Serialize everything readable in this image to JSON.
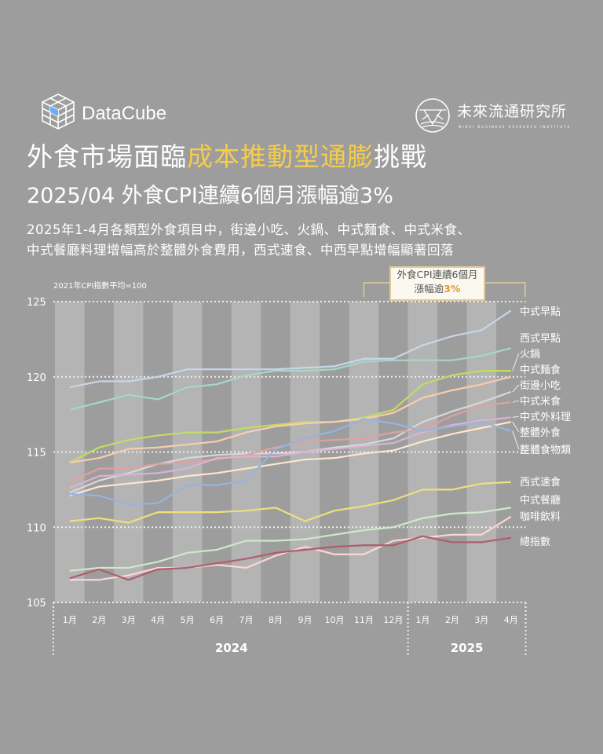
{
  "brand": {
    "datacube": "DataCube",
    "institute": "未來流通研究所",
    "institute_sub": "MIRAI BUSINESS RESEARCH INSTITUTE"
  },
  "header": {
    "title_pre": "外食市場面臨",
    "title_highlight": "成本推動型通膨",
    "title_post": "挑戰",
    "subtitle": "2025/04 外食CPI連續6個月漲幅逾3%",
    "desc_line1": "2025年1-4月各類型外食項目中，街邊小吃、火鍋、中式麵食、中式米食、",
    "desc_line2": "中式餐廳料理增幅高於整體外食費用，西式速食、中西早點增幅顯著回落"
  },
  "colors": {
    "background": "#9d9d9d",
    "stripe": "#b4b4b4",
    "highlight": "#f7cc4a",
    "callout_pct": "#e39a2d"
  },
  "chart_data": {
    "type": "line",
    "title": "",
    "ylabel": "2021年CPI指數平均=100",
    "ylim": [
      105,
      125
    ],
    "yticks": [
      105,
      110,
      115,
      120,
      125
    ],
    "grid": true,
    "categories": [
      "1月",
      "2月",
      "3月",
      "4月",
      "5月",
      "6月",
      "7月",
      "8月",
      "9月",
      "10月",
      "11月",
      "12月",
      "1月",
      "2月",
      "3月",
      "4月"
    ],
    "year_groups": [
      {
        "label": "2024",
        "months": 12
      },
      {
        "label": "2025",
        "months": 4
      }
    ],
    "annotation": {
      "line1": "外食CPI連續6個月",
      "line2_pre": "漲幅逾",
      "line2_pct": "3%",
      "span": [
        "11月",
        "4月"
      ]
    },
    "series": [
      {
        "name": "中式早點",
        "color": "#c9d5e8",
        "values": [
          119.3,
          119.7,
          119.7,
          120.0,
          120.5,
          120.5,
          120.5,
          120.5,
          120.6,
          120.7,
          121.2,
          121.2,
          122.1,
          122.7,
          123.1,
          124.4
        ]
      },
      {
        "name": "西式早點",
        "color": "#a6d8c6",
        "values": [
          117.8,
          118.3,
          118.8,
          118.5,
          119.3,
          119.5,
          120.1,
          120.4,
          120.4,
          120.5,
          121.0,
          121.1,
          121.1,
          121.1,
          121.4,
          121.9
        ]
      },
      {
        "name": "火鍋",
        "color": "#c3dc62",
        "values": [
          114.3,
          115.3,
          115.8,
          116.1,
          116.3,
          116.3,
          116.6,
          116.8,
          117.0,
          117.0,
          117.3,
          117.8,
          119.5,
          120.1,
          120.4,
          120.4
        ]
      },
      {
        "name": "中式麵食",
        "color": "#f8cdae",
        "values": [
          114.3,
          114.6,
          115.2,
          115.3,
          115.5,
          115.7,
          116.3,
          116.7,
          116.9,
          117.0,
          117.2,
          117.6,
          118.6,
          119.1,
          119.5,
          120.0
        ]
      },
      {
        "name": "街邊小吃",
        "color": "#d8d8d8",
        "values": [
          112.3,
          113.1,
          113.6,
          114.2,
          114.6,
          114.8,
          114.9,
          114.9,
          115.0,
          115.3,
          115.5,
          115.9,
          117.0,
          117.7,
          118.3,
          119.0
        ]
      },
      {
        "name": "中式米食",
        "color": "#e0a0a2",
        "values": [
          113.0,
          113.9,
          113.9,
          114.2,
          114.3,
          114.5,
          114.8,
          115.3,
          115.7,
          115.8,
          115.9,
          116.3,
          116.5,
          117.4,
          118.1,
          118.3
        ]
      },
      {
        "name": "中式外料理",
        "color": "#dcb2d4",
        "values": [
          112.6,
          113.4,
          113.5,
          113.6,
          113.9,
          114.6,
          114.7,
          114.7,
          115.0,
          115.2,
          115.4,
          115.6,
          116.3,
          116.8,
          117.1,
          117.3
        ]
      },
      {
        "name": "整體外食",
        "color": "#fde7cf",
        "values": [
          112.1,
          112.7,
          112.9,
          113.1,
          113.4,
          113.6,
          113.9,
          114.2,
          114.5,
          114.6,
          114.9,
          115.1,
          115.7,
          116.2,
          116.6,
          117.0
        ]
      },
      {
        "name": "整體食物類",
        "color": "#97b3e0",
        "values": [
          112.2,
          112.1,
          111.5,
          111.6,
          112.8,
          112.8,
          113.1,
          115.2,
          115.9,
          116.4,
          117.2,
          116.9,
          116.4,
          116.7,
          117.0,
          116.4
        ]
      },
      {
        "name": "西式速食",
        "color": "#efdf7c",
        "values": [
          110.4,
          110.6,
          110.3,
          111.0,
          111.0,
          111.0,
          111.1,
          111.3,
          110.4,
          111.1,
          111.4,
          111.8,
          112.5,
          112.5,
          112.9,
          113.0
        ]
      },
      {
        "name": "中式餐廳",
        "color": "#cfe9cb",
        "values": [
          107.1,
          107.3,
          107.3,
          107.7,
          108.3,
          108.5,
          109.1,
          109.1,
          109.2,
          109.5,
          109.8,
          110.0,
          110.6,
          110.9,
          111.0,
          111.3
        ]
      },
      {
        "name": "咖啡飲料",
        "color": "#fcd5d5",
        "values": [
          106.5,
          106.5,
          106.8,
          107.3,
          107.3,
          107.5,
          107.3,
          108.1,
          108.7,
          108.2,
          108.2,
          109.1,
          109.3,
          109.5,
          109.5,
          110.7
        ]
      },
      {
        "name": "總指數",
        "color": "#ae5e6c",
        "values": [
          106.6,
          107.2,
          106.5,
          107.2,
          107.3,
          107.6,
          107.9,
          108.3,
          108.5,
          108.7,
          108.8,
          108.8,
          109.4,
          109.0,
          109.0,
          109.3
        ]
      }
    ]
  }
}
